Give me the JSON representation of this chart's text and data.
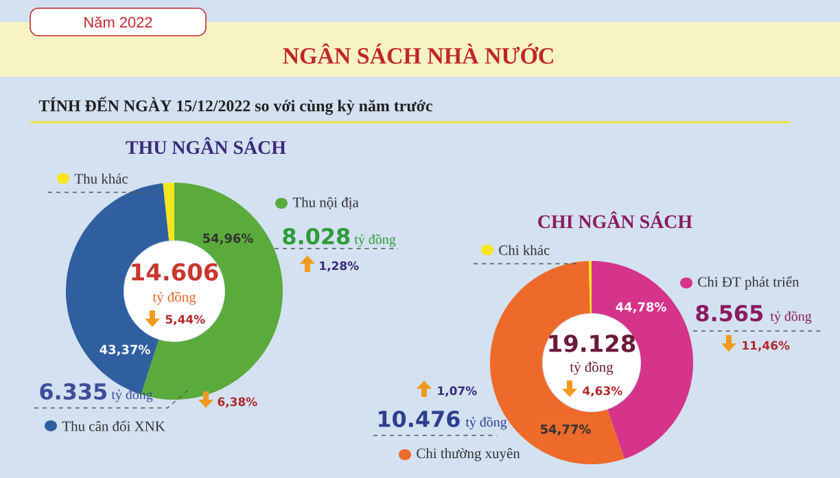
{
  "chart_data": [
    {
      "type": "other",
      "title": "NGÂN SÁCH NHÀ NƯỚC",
      "subtitle": "TÍNH ĐẾN NGÀY 15/12/2022 so với cùng kỳ năm trước",
      "annotations": [
        "Năm 2022"
      ]
    },
    {
      "type": "donut",
      "legend": "right",
      "title": "THU NGÂN SÁCH",
      "categories": [
        "Thu nội địa",
        "Thu cân đối XNK",
        "Thu khác"
      ],
      "values": [
        54.96,
        43.37,
        1.67
      ],
      "colors": [
        "#5aab3c",
        "#2f5f9e",
        "#f5e61e"
      ],
      "value_labels": [
        "54,96%",
        "43,37%",
        null
      ],
      "annotations": [
        "14.606",
        "tỷ đồng",
        "5,44%",
        "8.028",
        "tỷ đồng",
        "1,28%",
        "6.335",
        "tỷ đồng",
        "6,38%"
      ]
    },
    {
      "type": "donut",
      "legend": "right",
      "title": "CHI NGÂN SÁCH",
      "categories": [
        "Chi ĐT phát triển",
        "Chi thường xuyên",
        "Chi khác"
      ],
      "values": [
        44.78,
        54.77,
        0.45
      ],
      "colors": [
        "#d6338a",
        "#ee6a2a",
        "#f5e61e"
      ],
      "value_labels": [
        "44,78%",
        "54,77%",
        null
      ],
      "annotations": [
        "19.128",
        "tỷ đồng",
        "4,63%",
        "8.565",
        "tỷ đồng",
        "11,46%",
        "10.476",
        "tỷ đồng",
        "1,07%"
      ]
    }
  ]
}
